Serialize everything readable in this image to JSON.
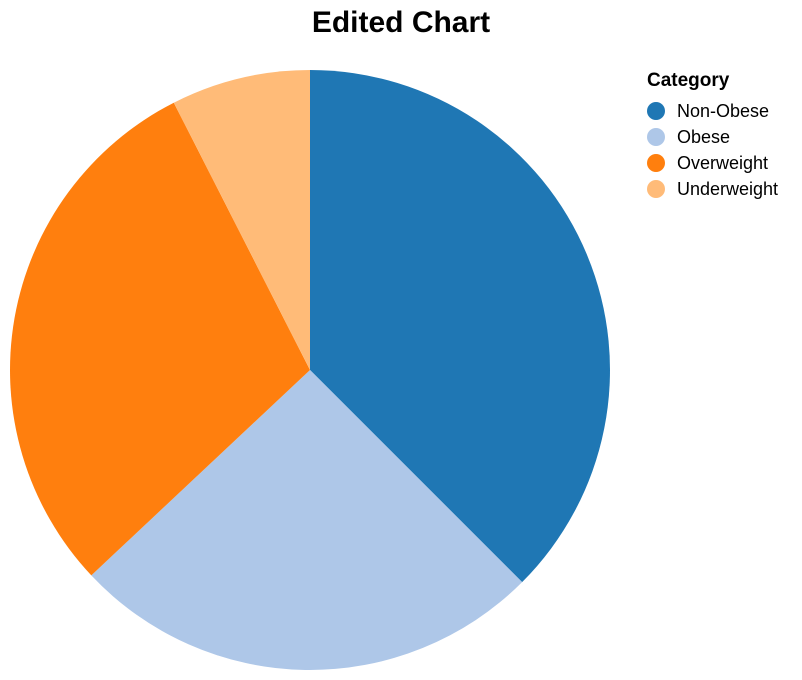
{
  "chart_data": {
    "type": "pie",
    "title": "Edited Chart",
    "legend_title": "Category",
    "legend_position": "top-right",
    "slices": [
      {
        "label": "Non-Obese",
        "value": 37.5,
        "color": "#1f77b4"
      },
      {
        "label": "Obese",
        "value": 25.5,
        "color": "#aec7e8"
      },
      {
        "label": "Overweight",
        "value": 29.5,
        "color": "#ff7f0e"
      },
      {
        "label": "Underweight",
        "value": 7.5,
        "color": "#ffbb78"
      }
    ]
  }
}
